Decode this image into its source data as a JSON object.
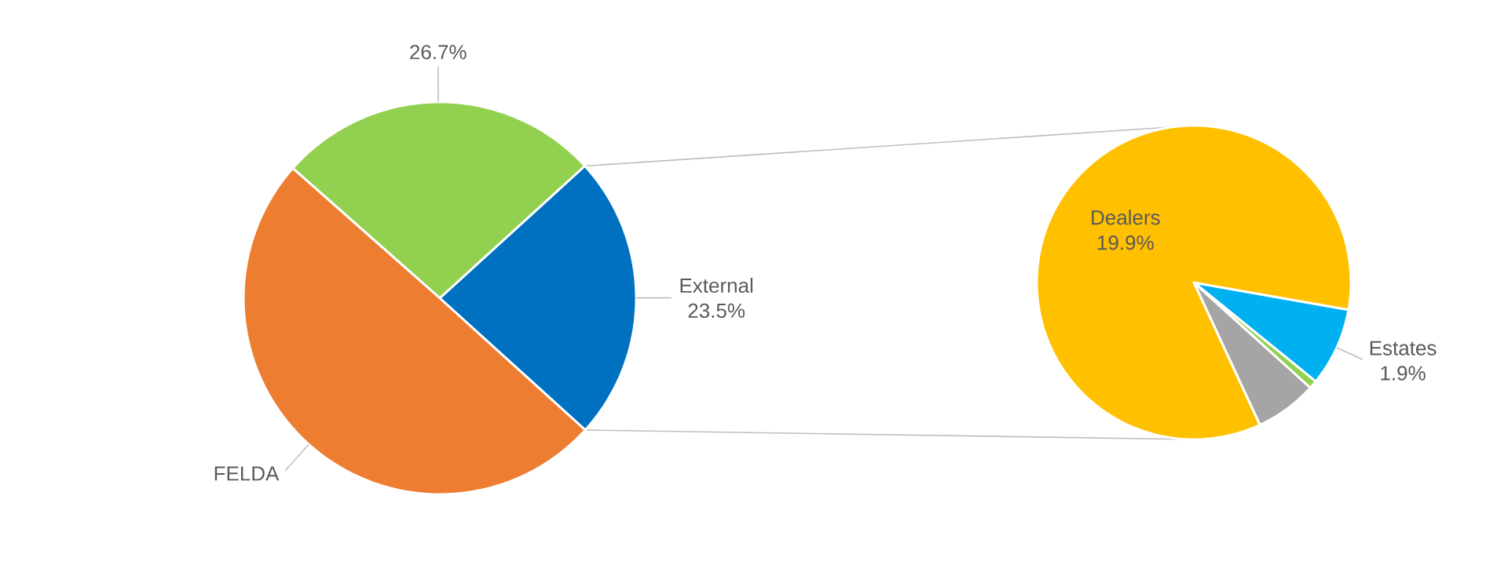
{
  "chart_data": [
    {
      "type": "pie",
      "categories": [
        null,
        "External",
        "FELDA"
      ],
      "values": [
        26.7,
        23.5,
        49.8
      ],
      "colors": [
        "#92d050",
        "#0070c0",
        "#ed7d31"
      ],
      "value_labels": [
        "26.7%",
        "23.5%",
        null
      ]
    },
    {
      "type": "pie",
      "categories": [
        "Estates",
        null,
        null,
        "Dealers"
      ],
      "values": [
        1.9,
        0.2,
        1.5,
        19.9
      ],
      "colors": [
        "#00b0f0",
        "#92d050",
        "#a5a5a5",
        "#ffc000"
      ],
      "value_labels": [
        "1.9%",
        null,
        null,
        "19.9%"
      ]
    }
  ]
}
